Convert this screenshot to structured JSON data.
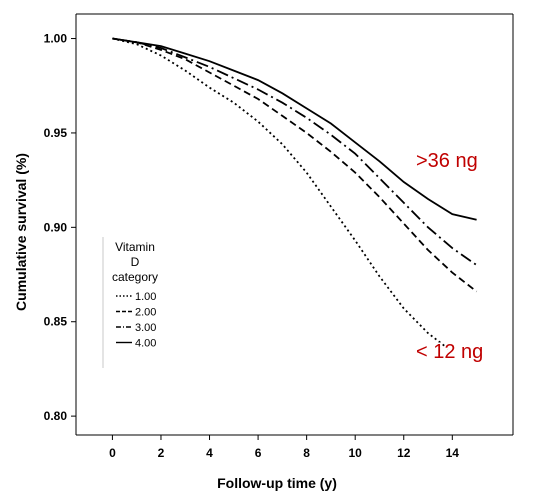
{
  "chart_data": {
    "type": "line",
    "xlabel": "Follow-up time (y)",
    "ylabel": "Cumulative survival (%)",
    "xlim": [
      -1.5,
      16.5
    ],
    "ylim": [
      0.79,
      1.013
    ],
    "x_ticks": [
      0,
      2,
      4,
      6,
      8,
      10,
      12,
      14
    ],
    "y_ticks": [
      0.8,
      0.85,
      0.9,
      0.95,
      1.0
    ],
    "y_tick_labels": [
      "0.80",
      "0.85",
      "0.90",
      "0.95",
      "1.00"
    ],
    "legend": {
      "title_lines": [
        "Vitamin",
        "D",
        "category"
      ],
      "entries": [
        "1.00",
        "2.00",
        "3.00",
        "4.00"
      ],
      "placement": "left"
    },
    "series": [
      {
        "name": "1.00",
        "dash": "dotted",
        "x": [
          0,
          1,
          2,
          3,
          4,
          5,
          6,
          7,
          8,
          9,
          10,
          11,
          12,
          13,
          14
        ],
        "y": [
          1.0,
          0.997,
          0.991,
          0.983,
          0.974,
          0.966,
          0.956,
          0.944,
          0.929,
          0.911,
          0.893,
          0.874,
          0.857,
          0.844,
          0.834
        ]
      },
      {
        "name": "2.00",
        "dash": "dashed",
        "x": [
          0,
          1,
          2,
          3,
          4,
          5,
          6,
          7,
          8,
          9,
          10,
          11,
          12,
          13,
          14,
          15
        ],
        "y": [
          1.0,
          0.998,
          0.994,
          0.989,
          0.982,
          0.975,
          0.968,
          0.959,
          0.95,
          0.94,
          0.929,
          0.916,
          0.902,
          0.888,
          0.876,
          0.866
        ]
      },
      {
        "name": "3.00",
        "dash": "long-dash-dot",
        "x": [
          0,
          1,
          2,
          3,
          4,
          5,
          6,
          7,
          8,
          9,
          10,
          11,
          12,
          13,
          14,
          15
        ],
        "y": [
          1.0,
          0.998,
          0.995,
          0.99,
          0.985,
          0.979,
          0.973,
          0.966,
          0.958,
          0.949,
          0.939,
          0.926,
          0.913,
          0.9,
          0.889,
          0.88
        ]
      },
      {
        "name": "4.00",
        "dash": "solid",
        "x": [
          0,
          1,
          2,
          3,
          4,
          5,
          6,
          7,
          8,
          9,
          10,
          11,
          12,
          13,
          14,
          15
        ],
        "y": [
          1.0,
          0.998,
          0.996,
          0.992,
          0.988,
          0.983,
          0.978,
          0.971,
          0.963,
          0.955,
          0.945,
          0.935,
          0.924,
          0.915,
          0.907,
          0.904
        ]
      }
    ],
    "annotations": [
      {
        "text": ">36 ng",
        "x": 12.3,
        "y": 0.935,
        "color": "#c00000"
      },
      {
        "text": "< 12 ng",
        "x": 12.3,
        "y": 0.835,
        "color": "#c00000"
      }
    ]
  }
}
